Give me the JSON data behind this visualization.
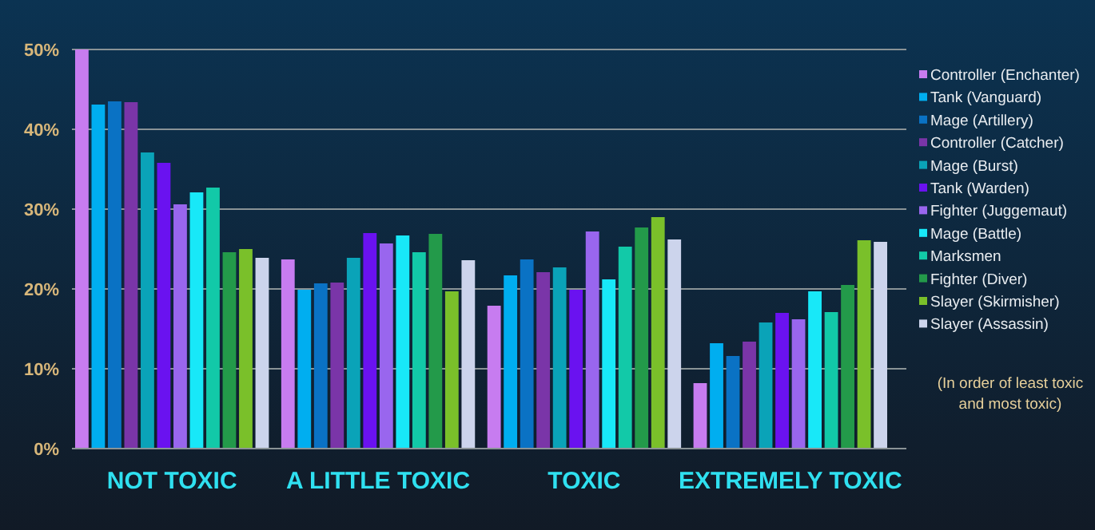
{
  "chart_data": {
    "type": "bar",
    "categories": [
      "NOT TOXIC",
      "A LITTLE TOXIC",
      "TOXIC",
      "EXTREMELY TOXIC"
    ],
    "series": [
      {
        "name": "Controller (Enchanter)",
        "color": "#c77cf0",
        "values": [
          50,
          23.7,
          17.9,
          8.2
        ]
      },
      {
        "name": "Tank (Vanguard)",
        "color": "#00aef0",
        "values": [
          43.1,
          19.9,
          21.7,
          13.2
        ]
      },
      {
        "name": "Mage (Artillery)",
        "color": "#0a72c4",
        "values": [
          43.5,
          20.7,
          23.7,
          11.6
        ]
      },
      {
        "name": "Controller (Catcher)",
        "color": "#7a35a8",
        "values": [
          43.4,
          20.8,
          22.1,
          13.4
        ]
      },
      {
        "name": "Mage (Burst)",
        "color": "#0aa3b8",
        "values": [
          37.1,
          23.9,
          22.7,
          15.8
        ]
      },
      {
        "name": "Tank (Warden)",
        "color": "#6a12f0",
        "values": [
          35.8,
          27,
          19.9,
          17
        ]
      },
      {
        "name": "Fighter (Juggemaut)",
        "color": "#9966ee",
        "values": [
          30.6,
          25.7,
          27.2,
          16.2
        ]
      },
      {
        "name": "Mage (Battle)",
        "color": "#18e8f8",
        "values": [
          32.1,
          26.7,
          21.2,
          19.7
        ]
      },
      {
        "name": "Marksmen",
        "color": "#12c9a8",
        "values": [
          32.7,
          24.6,
          25.3,
          17.1
        ]
      },
      {
        "name": "Fighter (Diver)",
        "color": "#239a4a",
        "values": [
          24.6,
          26.9,
          27.7,
          20.5
        ]
      },
      {
        "name": "Slayer (Skirmisher)",
        "color": "#7ac02a",
        "values": [
          25,
          19.7,
          29,
          26.1
        ]
      },
      {
        "name": "Slayer (Assassin)",
        "color": "#ccd4ec",
        "values": [
          23.9,
          23.6,
          26.2,
          25.9
        ]
      }
    ],
    "ylim": [
      0,
      50
    ],
    "yticks": [
      {
        "value": 0,
        "label": "0%"
      },
      {
        "value": 10,
        "label": "10%"
      },
      {
        "value": 20,
        "label": "20%"
      },
      {
        "value": 30,
        "label": "30%"
      },
      {
        "value": 40,
        "label": "40%"
      },
      {
        "value": 50,
        "label": "50%"
      }
    ],
    "grid": "y",
    "legend": "right",
    "annotations": [
      "(In order of least toxic and most toxic)"
    ]
  }
}
